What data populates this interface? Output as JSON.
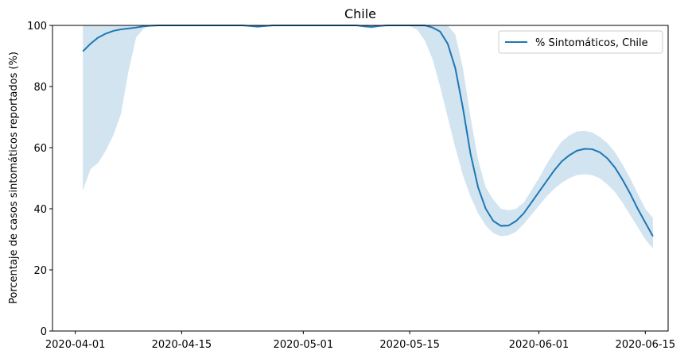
{
  "chart_data": {
    "type": "line",
    "title": "Chile",
    "ylabel": "Porcentaje de casos sintomáticos reportados (%)",
    "x": [
      "2020-04-02",
      "2020-04-03",
      "2020-04-04",
      "2020-04-05",
      "2020-04-06",
      "2020-04-07",
      "2020-04-08",
      "2020-04-09",
      "2020-04-10",
      "2020-04-11",
      "2020-04-12",
      "2020-04-13",
      "2020-04-14",
      "2020-04-15",
      "2020-04-16",
      "2020-04-17",
      "2020-04-18",
      "2020-04-19",
      "2020-04-20",
      "2020-04-21",
      "2020-04-22",
      "2020-04-23",
      "2020-04-24",
      "2020-04-25",
      "2020-04-26",
      "2020-04-27",
      "2020-04-28",
      "2020-04-29",
      "2020-04-30",
      "2020-05-01",
      "2020-05-02",
      "2020-05-03",
      "2020-05-04",
      "2020-05-05",
      "2020-05-06",
      "2020-05-07",
      "2020-05-08",
      "2020-05-09",
      "2020-05-10",
      "2020-05-11",
      "2020-05-12",
      "2020-05-13",
      "2020-05-14",
      "2020-05-15",
      "2020-05-16",
      "2020-05-17",
      "2020-05-18",
      "2020-05-19",
      "2020-05-20",
      "2020-05-21",
      "2020-05-22",
      "2020-05-23",
      "2020-05-24",
      "2020-05-25",
      "2020-05-26",
      "2020-05-27",
      "2020-05-28",
      "2020-05-29",
      "2020-05-30",
      "2020-05-31",
      "2020-06-01",
      "2020-06-02",
      "2020-06-03",
      "2020-06-04",
      "2020-06-05",
      "2020-06-06",
      "2020-06-07",
      "2020-06-08",
      "2020-06-09",
      "2020-06-10",
      "2020-06-11",
      "2020-06-12",
      "2020-06-13",
      "2020-06-14",
      "2020-06-15",
      "2020-06-16"
    ],
    "series": [
      {
        "name": "% Sintomáticos, Chile",
        "color": "#1f77b4",
        "values": [
          91.5,
          94,
          96,
          97.3,
          98.2,
          98.7,
          99,
          99.3,
          99.7,
          99.9,
          100,
          100,
          100,
          100,
          100,
          100,
          100,
          100,
          100,
          100,
          100,
          100,
          99.8,
          99.6,
          99.8,
          100,
          100,
          100,
          100,
          100,
          100,
          100,
          100,
          100,
          100,
          100,
          100,
          99.7,
          99.5,
          99.8,
          100,
          100,
          100,
          100,
          100,
          100,
          99.3,
          98,
          94,
          86,
          73,
          58,
          47,
          40,
          36,
          34.4,
          34.5,
          36,
          38.5,
          42,
          45.5,
          49,
          52.5,
          55.5,
          57.5,
          59,
          59.6,
          59.5,
          58.5,
          56.5,
          53.5,
          49.5,
          45,
          40,
          35.5,
          31
        ]
      }
    ],
    "band": {
      "color": "#1f77b4",
      "lower": [
        46,
        53,
        55,
        59,
        64,
        71,
        85,
        96,
        99,
        99.8,
        100,
        100,
        100,
        100,
        100,
        100,
        100,
        100,
        100,
        100,
        100,
        100,
        99.5,
        99.2,
        99.5,
        100,
        100,
        100,
        100,
        100,
        100,
        100,
        100,
        100,
        100,
        100,
        100,
        99.3,
        99,
        99.5,
        100,
        100,
        100,
        99.8,
        98.5,
        95,
        89,
        80,
        70,
        60,
        51,
        44,
        38.5,
        34.5,
        32,
        31,
        31.3,
        32.5,
        35,
        38,
        41,
        44,
        46.5,
        48.5,
        50,
        51,
        51.3,
        51,
        50,
        48,
        45.5,
        42,
        38,
        34,
        30,
        27
      ],
      "upper": [
        100,
        100,
        100,
        100,
        100,
        100,
        100,
        100,
        100,
        100,
        100,
        100,
        100,
        100,
        100,
        100,
        100,
        100,
        100,
        100,
        100,
        100,
        100,
        100,
        100,
        100,
        100,
        100,
        100,
        100,
        100,
        100,
        100,
        100,
        100,
        100,
        100,
        100,
        100,
        100,
        100,
        100,
        100,
        100,
        100,
        100,
        100,
        100,
        100,
        97,
        86,
        70,
        56,
        47,
        43,
        40,
        39.5,
        40,
        42,
        46,
        50,
        54.5,
        58.5,
        62,
        64,
        65.3,
        65.5,
        65,
        63.5,
        61.5,
        58.5,
        54.5,
        50,
        45,
        40,
        37
      ]
    },
    "xlim": [
      "2020-03-29",
      "2020-06-18"
    ],
    "xticks": [
      "2020-04-01",
      "2020-04-15",
      "2020-05-01",
      "2020-05-15",
      "2020-06-01",
      "2020-06-15"
    ],
    "ylim": [
      0,
      100
    ],
    "yticks": [
      0,
      20,
      40,
      60,
      80,
      100
    ],
    "legend": "upper right"
  }
}
